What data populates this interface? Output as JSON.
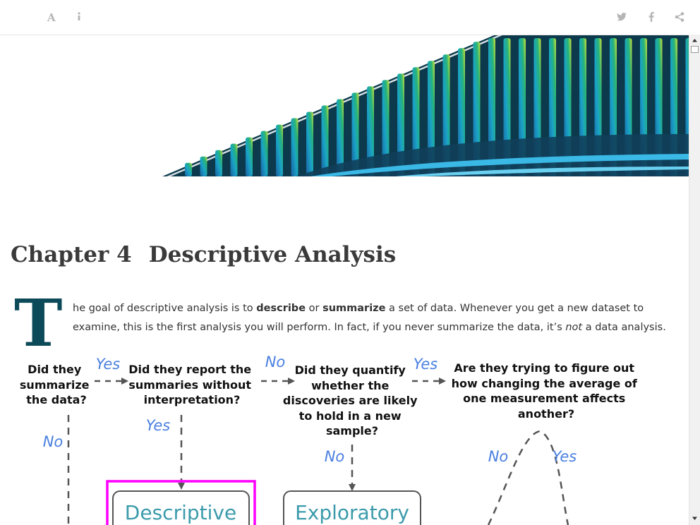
{
  "toolbar": {
    "left_icons": [
      "font-settings-icon",
      "info-icon"
    ],
    "right_icons": [
      "twitter-icon",
      "facebook-icon",
      "share-icon"
    ]
  },
  "chapter": {
    "number": "Chapter 4",
    "title": "Descriptive Analysis"
  },
  "intro": {
    "drop_cap": "T",
    "line1_a": "he goal of descriptive analysis is to ",
    "line1_bold1": "describe",
    "line1_b": " or ",
    "line1_bold2": "summarize",
    "line1_c": " a set of data. Whenever you get a new dataset to",
    "line2_a": "examine, this is the first analysis you will perform. In fact, if you never summarize the data, it’s ",
    "line2_italic": "not",
    "line2_b": " a data analysis."
  },
  "flowchart": {
    "q1": [
      "Did they",
      "summarize",
      "the data?"
    ],
    "q2": [
      "Did they report the",
      "summaries without",
      "interpretation?"
    ],
    "q3": [
      "Did they quantify",
      "whether the",
      "discoveries are likely",
      "to hold in a new",
      "sample?"
    ],
    "q4": [
      "Are they trying to figure out",
      "how changing the average of",
      "one measurement affects",
      "another?"
    ],
    "edge_q1_q2": "Yes",
    "edge_q2_q3": "No",
    "edge_q3_q4": "Yes",
    "edge_q1_down": "No",
    "edge_q2_down": "Yes",
    "edge_q3_down": "No",
    "edge_q4_left": "No",
    "edge_q4_right": "Yes",
    "box_descriptive": "Descriptive",
    "box_exploratory": "Exploratory",
    "colors": {
      "question_text": "#111111",
      "edge_label": "#4a7fe0",
      "box_text": "#3b9bab",
      "highlight": "#ff00ff",
      "arrow": "#555555"
    }
  }
}
